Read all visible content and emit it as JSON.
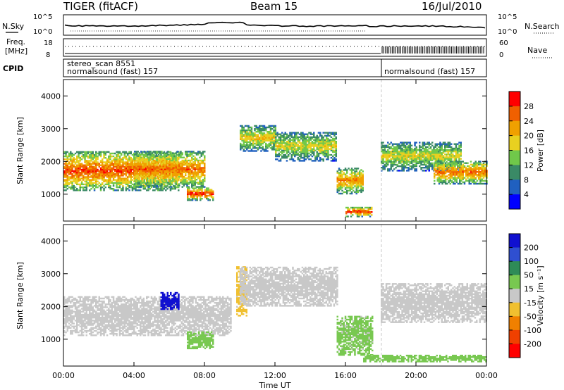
{
  "header": {
    "radar": "TIGER (fitACF)",
    "beam": "Beam 15",
    "date": "16/Jul/2010"
  },
  "noise_panel": {
    "left_label": "N.Sky",
    "right_label": "N.Search",
    "left_ticks": [
      "10^5",
      "10^0"
    ],
    "right_ticks": [
      "10^5",
      "10^0"
    ]
  },
  "freq_panel": {
    "left_label_line1": "Freq.",
    "left_label_line2": "[MHz]",
    "right_label": "Nave",
    "left_ticks": [
      "18",
      "8"
    ],
    "right_ticks": [
      "60",
      "0"
    ]
  },
  "cpid_panel": {
    "label": "CPID",
    "seg1_line1": "stereo_scan 8551",
    "seg1_line2": "normalsound (fast) 157",
    "seg2_line1": "normalsound (fast) 157"
  },
  "colors": {
    "power_scale": [
      "#0000ff",
      "#2060c0",
      "#3a8a66",
      "#70c84a",
      "#e8d020",
      "#f0a000",
      "#f06000",
      "#ff0000"
    ],
    "velocity_scale": [
      "#1010d0",
      "#2f4fd0",
      "#2e8b57",
      "#78c850",
      "#c8c8c8",
      "#f0c030",
      "#f08000",
      "#f04000",
      "#ff0000"
    ]
  },
  "chart_data": [
    {
      "type": "heatmap",
      "name": "power",
      "xlabel": "",
      "ylabel": "Slant Range [km]",
      "x_ticks": [
        "00:00",
        "04:00",
        "08:00",
        "12:00",
        "16:00",
        "20:00",
        "00:00"
      ],
      "x_range_hours": [
        0,
        24
      ],
      "ylim": [
        180,
        4500
      ],
      "y_ticks": [
        1000,
        2000,
        3000,
        4000
      ],
      "colorbar": {
        "label": "Power [dB]",
        "ticks": [
          4,
          8,
          12,
          16,
          20,
          24,
          28
        ],
        "range": [
          0,
          32
        ]
      },
      "echo_regions": [
        {
          "t_start": 0.0,
          "t_end": 6.5,
          "r_low": 1100,
          "r_high": 2300,
          "peak_db": 28
        },
        {
          "t_start": 4.0,
          "t_end": 8.0,
          "r_low": 1200,
          "r_high": 2300,
          "peak_db": 26
        },
        {
          "t_start": 7.0,
          "t_end": 8.5,
          "r_low": 800,
          "r_high": 1200,
          "peak_db": 29
        },
        {
          "t_start": 10.0,
          "t_end": 12.0,
          "r_low": 2300,
          "r_high": 3100,
          "peak_db": 20
        },
        {
          "t_start": 12.0,
          "t_end": 15.5,
          "r_low": 2000,
          "r_high": 2900,
          "peak_db": 18
        },
        {
          "t_start": 15.5,
          "t_end": 17.0,
          "r_low": 1000,
          "r_high": 1800,
          "peak_db": 24
        },
        {
          "t_start": 16.0,
          "t_end": 17.5,
          "r_low": 300,
          "r_high": 600,
          "peak_db": 30
        },
        {
          "t_start": 18.0,
          "t_end": 22.5,
          "r_low": 1700,
          "r_high": 2600,
          "peak_db": 18
        },
        {
          "t_start": 21.0,
          "t_end": 24.0,
          "r_low": 1300,
          "r_high": 2000,
          "peak_db": 26
        }
      ]
    },
    {
      "type": "heatmap",
      "name": "velocity",
      "xlabel": "Time UT",
      "ylabel": "Slant Range [km]",
      "x_ticks": [
        "00:00",
        "04:00",
        "08:00",
        "12:00",
        "16:00",
        "20:00",
        "00:00"
      ],
      "x_range_hours": [
        0,
        24
      ],
      "ylim": [
        180,
        4500
      ],
      "y_ticks": [
        1000,
        2000,
        3000,
        4000
      ],
      "colorbar": {
        "label": "Velocity [m s⁻¹]",
        "ticks": [
          200,
          100,
          50,
          15,
          -15,
          -50,
          -100,
          -200
        ],
        "range": [
          -250,
          250
        ]
      },
      "echo_regions": [
        {
          "t_start": 0.0,
          "t_end": 9.5,
          "r_low": 1100,
          "r_high": 2300,
          "velocity": 0
        },
        {
          "t_start": 5.5,
          "t_end": 6.5,
          "r_low": 1900,
          "r_high": 2400,
          "velocity": 220
        },
        {
          "t_start": 7.0,
          "t_end": 8.5,
          "r_low": 700,
          "r_high": 1200,
          "velocity": 60
        },
        {
          "t_start": 9.8,
          "t_end": 10.4,
          "r_low": 1700,
          "r_high": 3200,
          "velocity": -40
        },
        {
          "t_start": 10.0,
          "t_end": 15.5,
          "r_low": 2000,
          "r_high": 3200,
          "velocity": 0
        },
        {
          "t_start": 15.5,
          "t_end": 17.5,
          "r_low": 500,
          "r_high": 1700,
          "velocity": 40
        },
        {
          "t_start": 18.0,
          "t_end": 24.0,
          "r_low": 1500,
          "r_high": 2700,
          "velocity": 0
        },
        {
          "t_start": 17.0,
          "t_end": 24.0,
          "r_low": 300,
          "r_high": 500,
          "velocity": 50
        }
      ]
    }
  ]
}
